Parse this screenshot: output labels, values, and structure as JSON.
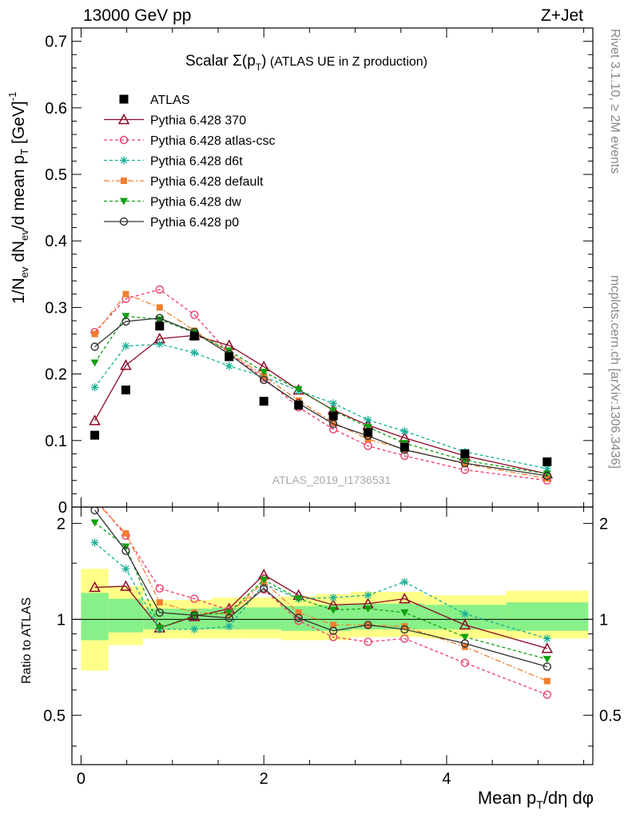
{
  "header": {
    "left": "13000 GeV pp",
    "right": "Z+Jet"
  },
  "side": {
    "rivet": "Rivet 3.1.10, ≥ 2M events",
    "mcplots": "mcplots.cern.ch [arXiv:1306.3436]"
  },
  "watermark": "ATLAS_2019_I1736531",
  "title": {
    "main": "Scalar Σ(p",
    "sub": "T",
    "close": ")",
    "extra": " (ATLAS UE in Z production)"
  },
  "ylabel_main": "1/N_ev dN_ev/d mean p_T [GeV]^-1",
  "ylabel_ratio": "Ratio to ATLAS",
  "xlabel": "Mean p_T/dη dφ",
  "chart_data": [
    {
      "type": "line",
      "panel": "main",
      "xlim": [
        -0.1,
        5.6
      ],
      "ylim": [
        0,
        0.72
      ],
      "xticks": [
        "0",
        "2",
        "4"
      ],
      "yticks": [
        "0",
        "0.1",
        "0.2",
        "0.3",
        "0.4",
        "0.5",
        "0.6",
        "0.7"
      ],
      "ytick_values": [
        0,
        0.1,
        0.2,
        0.3,
        0.4,
        0.5,
        0.6,
        0.7
      ],
      "xtick_values": [
        0,
        2,
        4
      ],
      "x": [
        0.15,
        0.49,
        0.86,
        1.24,
        1.62,
        2.0,
        2.38,
        2.76,
        3.14,
        3.54,
        4.2,
        5.1
      ],
      "data": {
        "name": "ATLAS",
        "color": "#000000",
        "values": [
          0.108,
          0.176,
          0.272,
          0.257,
          0.226,
          0.159,
          0.153,
          0.137,
          0.112,
          0.09,
          0.08,
          0.068
        ]
      },
      "series": [
        {
          "name": "Pythia 6.428 370",
          "color": "#8b0a26",
          "marker": "triangle-open",
          "dash": "",
          "values": [
            0.13,
            0.213,
            0.253,
            0.258,
            0.243,
            0.211,
            0.176,
            0.146,
            0.123,
            0.104,
            0.077,
            0.05
          ]
        },
        {
          "name": "Pythia 6.428 atlas-csc",
          "color": "#ee3c6a",
          "marker": "circle-open",
          "dash": "4,3",
          "values": [
            0.263,
            0.313,
            0.327,
            0.289,
            0.231,
            0.194,
            0.15,
            0.117,
            0.092,
            0.077,
            0.056,
            0.04
          ]
        },
        {
          "name": "Pythia 6.428 d6t",
          "color": "#18b098",
          "marker": "asterisk",
          "dash": "4,3",
          "values": [
            0.18,
            0.242,
            0.245,
            0.232,
            0.212,
            0.196,
            0.175,
            0.156,
            0.131,
            0.114,
            0.083,
            0.058
          ]
        },
        {
          "name": "Pythia 6.428 default",
          "color": "#f07f30",
          "marker": "square",
          "dash": "7,3,2,3",
          "values": [
            0.26,
            0.32,
            0.3,
            0.265,
            0.233,
            0.197,
            0.16,
            0.127,
            0.102,
            0.087,
            0.065,
            0.043
          ]
        },
        {
          "name": "Pythia 6.428 dw",
          "color": "#10a010",
          "marker": "triangle-down",
          "dash": "4,3",
          "values": [
            0.217,
            0.287,
            0.282,
            0.262,
            0.235,
            0.203,
            0.177,
            0.145,
            0.12,
            0.096,
            0.07,
            0.05
          ]
        },
        {
          "name": "Pythia 6.428 p0",
          "color": "#333333",
          "marker": "circle-open",
          "dash": "",
          "values": [
            0.241,
            0.279,
            0.284,
            0.263,
            0.23,
            0.191,
            0.156,
            0.125,
            0.107,
            0.086,
            0.066,
            0.047
          ]
        }
      ]
    },
    {
      "type": "line",
      "panel": "ratio",
      "xlim": [
        -0.1,
        5.6
      ],
      "ylim": [
        0.35,
        2.25
      ],
      "yticks": [
        "0.5",
        "1",
        "2"
      ],
      "ytick_values": [
        0.5,
        1,
        2
      ],
      "x": [
        0.15,
        0.49,
        0.86,
        1.24,
        1.62,
        2.0,
        2.38,
        2.76,
        3.14,
        3.54,
        4.2,
        5.1
      ],
      "bands": {
        "edges": [
          0,
          0.3,
          0.68,
          1.05,
          1.43,
          1.81,
          2.19,
          2.57,
          2.95,
          3.33,
          3.75,
          4.65,
          5.55
        ],
        "total": [
          [
            0.69,
            1.44
          ],
          [
            0.83,
            1.27
          ],
          [
            0.87,
            1.15
          ],
          [
            0.87,
            1.15
          ],
          [
            0.87,
            1.17
          ],
          [
            0.87,
            1.17
          ],
          [
            0.86,
            1.18
          ],
          [
            0.86,
            1.2
          ],
          [
            0.88,
            1.22
          ],
          [
            0.88,
            1.22
          ],
          [
            0.87,
            1.19
          ],
          [
            0.87,
            1.23
          ]
        ],
        "stat": [
          [
            0.86,
            1.21
          ],
          [
            0.91,
            1.16
          ],
          [
            0.93,
            1.08
          ],
          [
            0.93,
            1.08
          ],
          [
            0.93,
            1.09
          ],
          [
            0.93,
            1.09
          ],
          [
            0.92,
            1.1
          ],
          [
            0.92,
            1.11
          ],
          [
            0.93,
            1.12
          ],
          [
            0.93,
            1.12
          ],
          [
            0.93,
            1.11
          ],
          [
            0.92,
            1.13
          ]
        ]
      },
      "series": [
        {
          "name": "Pythia 6.428 370",
          "values": [
            1.26,
            1.27,
            0.94,
            1.02,
            1.08,
            1.38,
            1.19,
            1.11,
            1.12,
            1.16,
            0.96,
            0.81
          ]
        },
        {
          "name": "Pythia 6.428 atlas-csc",
          "values": [
            2.4,
            1.83,
            1.25,
            1.16,
            1.07,
            1.24,
            0.99,
            0.88,
            0.85,
            0.87,
            0.73,
            0.58
          ]
        },
        {
          "name": "Pythia 6.428 d6t",
          "values": [
            1.74,
            1.44,
            0.93,
            0.93,
            0.95,
            1.29,
            1.16,
            1.17,
            1.19,
            1.31,
            1.04,
            0.87
          ]
        },
        {
          "name": "Pythia 6.428 default",
          "values": [
            2.36,
            1.86,
            1.13,
            1.05,
            1.04,
            1.31,
            1.05,
            0.96,
            0.96,
            0.95,
            0.82,
            0.64
          ]
        },
        {
          "name": "Pythia 6.428 dw",
          "values": [
            2.01,
            1.69,
            0.94,
            1.03,
            1.05,
            1.33,
            1.16,
            1.07,
            1.08,
            1.05,
            0.88,
            0.75
          ]
        },
        {
          "name": "Pythia 6.428 p0",
          "values": [
            2.2,
            1.64,
            1.05,
            1.03,
            1.01,
            1.25,
            1.01,
            0.92,
            0.96,
            0.93,
            0.84,
            0.71
          ]
        }
      ]
    }
  ]
}
